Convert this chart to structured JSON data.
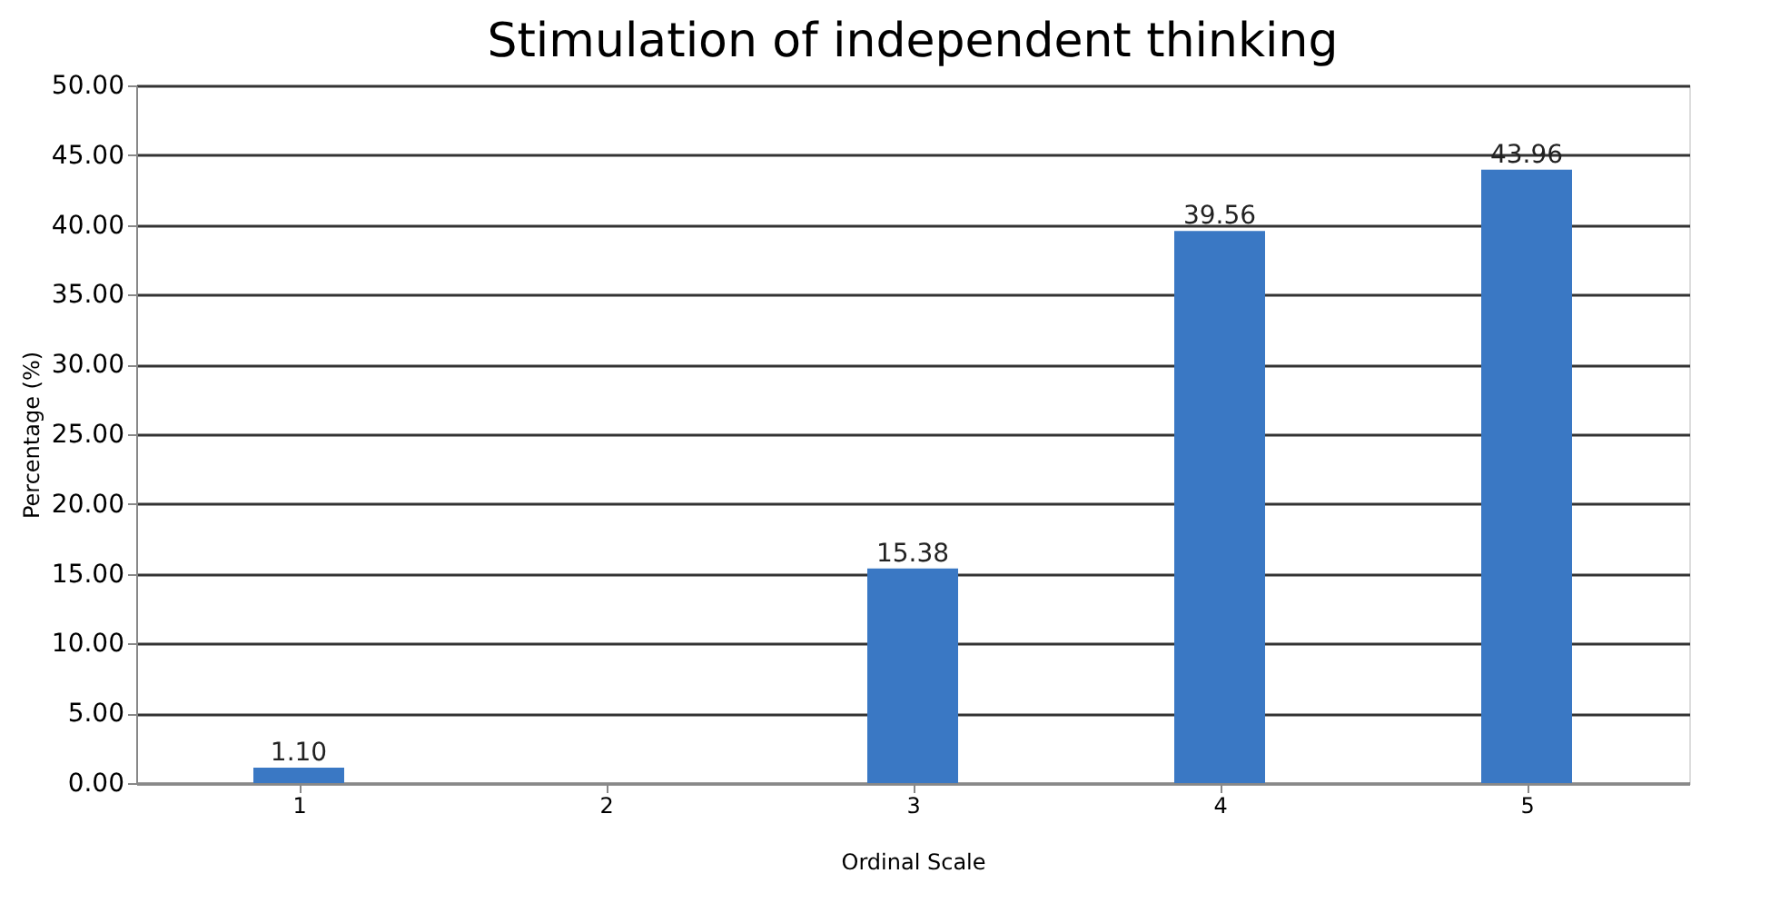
{
  "chart_data": {
    "type": "bar",
    "title": "Stimulation of independent thinking",
    "xlabel": "Ordinal Scale",
    "ylabel": "Percentage (%)",
    "categories": [
      "1",
      "2",
      "3",
      "4",
      "5"
    ],
    "values": [
      1.1,
      null,
      15.38,
      39.56,
      43.96
    ],
    "value_labels": [
      "1.10",
      null,
      "15.38",
      "39.56",
      "43.96"
    ],
    "color": "#3a78c4",
    "ylim": [
      0,
      50
    ],
    "yticks": [
      {
        "value": 0,
        "label": "0.00"
      },
      {
        "value": 5,
        "label": "5.00"
      },
      {
        "value": 10,
        "label": "10.00"
      },
      {
        "value": 15,
        "label": "15.00"
      },
      {
        "value": 20,
        "label": "20.00"
      },
      {
        "value": 25,
        "label": "25.00"
      },
      {
        "value": 30,
        "label": "30.00"
      },
      {
        "value": 35,
        "label": "35.00"
      },
      {
        "value": 40,
        "label": "40.00"
      },
      {
        "value": 45,
        "label": "45.00"
      },
      {
        "value": 50,
        "label": "50.00"
      }
    ],
    "grid": "y"
  }
}
